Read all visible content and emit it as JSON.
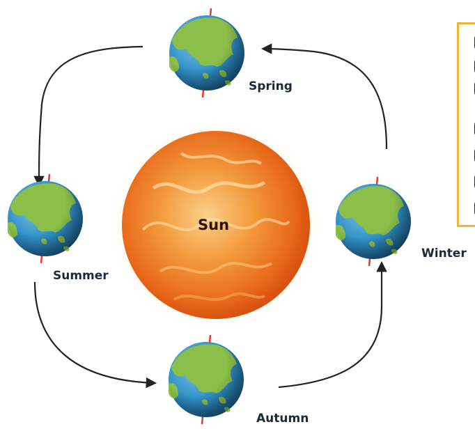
{
  "diagram": {
    "sun": {
      "label": "Sun"
    },
    "seasons": [
      {
        "key": "spring",
        "label": "Spring"
      },
      {
        "key": "summer",
        "label": "Summer"
      },
      {
        "key": "autumn",
        "label": "Autumn"
      },
      {
        "key": "winter",
        "label": "Winter"
      }
    ]
  },
  "colors": {
    "ocean": "#2f8fc4",
    "land": "#8cbf4a",
    "axis": "#e8382c",
    "sun_core": "#f08a2a",
    "sun_edge": "#e05a12",
    "arrow": "#222222",
    "note_border": "#f2b233"
  }
}
